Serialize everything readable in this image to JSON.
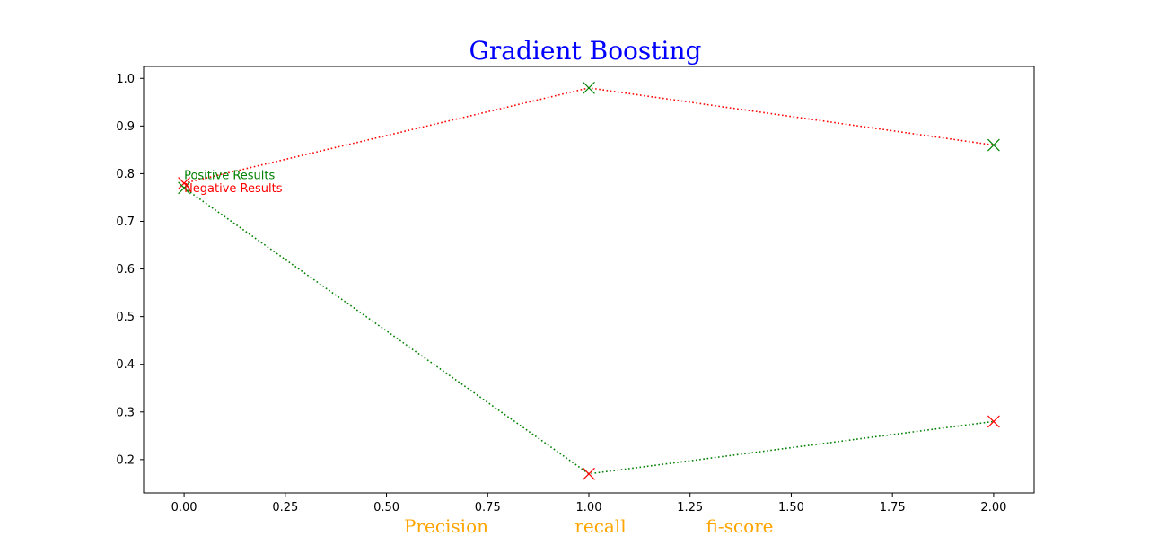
{
  "chart_data": {
    "type": "line",
    "title": "Gradient Boosting",
    "title_color": "#0000ff",
    "x": [
      0.0,
      1.0,
      2.0
    ],
    "xlim": [
      -0.1,
      2.1
    ],
    "ylim": [
      0.13,
      1.025
    ],
    "xticks": [
      "0.00",
      "0.25",
      "0.50",
      "0.75",
      "1.00",
      "1.25",
      "1.50",
      "1.75",
      "2.00"
    ],
    "yticks": [
      "0.2",
      "0.3",
      "0.4",
      "0.5",
      "0.6",
      "0.7",
      "0.8",
      "0.9",
      "1.0"
    ],
    "xlabel_words": [
      "Precision",
      "recall",
      "fi-score"
    ],
    "xlabel_color": "#ffa500",
    "grid": false,
    "series": [
      {
        "values": [
          0.78,
          0.98,
          0.86
        ],
        "line_color": "#ff0000",
        "marker_colors": [
          "#ff0000",
          "#008000",
          "#008000"
        ],
        "linestyle": "dotted",
        "marker": "x"
      },
      {
        "values": [
          0.77,
          0.17,
          0.28
        ],
        "line_color": "#008000",
        "marker_colors": [
          "#008000",
          "#ff0000",
          "#ff0000"
        ],
        "linestyle": "dotted",
        "marker": "x"
      }
    ],
    "annotations": [
      {
        "text": "Positive Results",
        "color": "#008000",
        "x": 0.0,
        "y": 0.77
      },
      {
        "text": "Negative Results",
        "color": "#ff0000",
        "x": 0.0,
        "y": 0.78
      }
    ]
  }
}
